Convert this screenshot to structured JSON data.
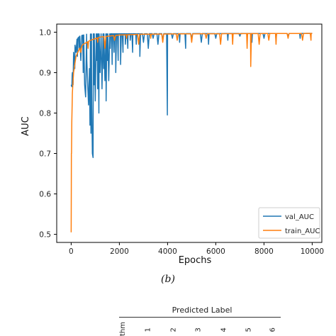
{
  "chart_data": {
    "type": "line",
    "xlabel": "Epochs",
    "ylabel": "AUC",
    "xlim": [
      -600,
      10400
    ],
    "ylim": [
      0.48,
      1.02
    ],
    "x_ticks": [
      "0",
      "2000",
      "4000",
      "6000",
      "8000",
      "10000"
    ],
    "y_ticks": [
      "0.5",
      "0.6",
      "0.7",
      "0.8",
      "0.9",
      "1.0"
    ],
    "legend_position": "lower-right",
    "grid": false,
    "series": [
      {
        "name": "val_AUC",
        "color": "#1f77b4",
        "baseline": [
          [
            0,
            0.87
          ],
          [
            50,
            0.9
          ],
          [
            100,
            0.95
          ],
          [
            200,
            0.98
          ],
          [
            350,
            0.99
          ],
          [
            600,
            0.995
          ],
          [
            1000,
            0.996
          ],
          [
            10000,
            0.997
          ]
        ],
        "dips": [
          [
            30,
            0.865
          ],
          [
            60,
            0.9
          ],
          [
            80,
            0.87
          ],
          [
            120,
            0.93
          ],
          [
            150,
            0.91
          ],
          [
            200,
            0.95
          ],
          [
            260,
            0.94
          ],
          [
            330,
            0.96
          ],
          [
            400,
            0.93
          ],
          [
            500,
            0.9
          ],
          [
            560,
            0.87
          ],
          [
            600,
            0.84
          ],
          [
            650,
            0.93
          ],
          [
            680,
            0.88
          ],
          [
            720,
            0.82
          ],
          [
            760,
            0.91
          ],
          [
            780,
            0.77
          ],
          [
            820,
            0.75
          ],
          [
            850,
            0.85
          ],
          [
            880,
            0.7
          ],
          [
            910,
            0.69
          ],
          [
            950,
            0.87
          ],
          [
            1000,
            0.83
          ],
          [
            1050,
            0.93
          ],
          [
            1100,
            0.86
          ],
          [
            1150,
            0.8
          ],
          [
            1200,
            0.9
          ],
          [
            1280,
            0.86
          ],
          [
            1350,
            0.91
          ],
          [
            1400,
            0.88
          ],
          [
            1450,
            0.83
          ],
          [
            1500,
            0.93
          ],
          [
            1560,
            0.88
          ],
          [
            1620,
            0.96
          ],
          [
            1700,
            0.92
          ],
          [
            1780,
            0.95
          ],
          [
            1850,
            0.9
          ],
          [
            1950,
            0.93
          ],
          [
            2050,
            0.92
          ],
          [
            2150,
            0.95
          ],
          [
            2250,
            0.97
          ],
          [
            2350,
            0.96
          ],
          [
            2450,
            0.98
          ],
          [
            2550,
            0.95
          ],
          [
            2700,
            0.97
          ],
          [
            2850,
            0.94
          ],
          [
            3000,
            0.975
          ],
          [
            3200,
            0.96
          ],
          [
            3400,
            0.985
          ],
          [
            3600,
            0.97
          ],
          [
            3800,
            0.98
          ],
          [
            3990,
            0.795
          ],
          [
            4200,
            0.985
          ],
          [
            4500,
            0.975
          ],
          [
            4750,
            0.96
          ],
          [
            5000,
            0.985
          ],
          [
            5400,
            0.975
          ],
          [
            5700,
            0.97
          ],
          [
            6000,
            0.985
          ],
          [
            6500,
            0.98
          ],
          [
            7000,
            0.99
          ],
          [
            7500,
            0.975
          ],
          [
            8000,
            0.985
          ],
          [
            8500,
            0.98
          ],
          [
            9000,
            0.99
          ],
          [
            9500,
            0.985
          ]
        ]
      },
      {
        "name": "train_AUC",
        "color": "#ff7f0e",
        "baseline": [
          [
            0,
            0.5
          ],
          [
            10,
            0.7
          ],
          [
            25,
            0.78
          ],
          [
            50,
            0.85
          ],
          [
            100,
            0.9
          ],
          [
            200,
            0.94
          ],
          [
            350,
            0.96
          ],
          [
            500,
            0.97
          ],
          [
            800,
            0.98
          ],
          [
            1200,
            0.988
          ],
          [
            2000,
            0.993
          ],
          [
            3000,
            0.995
          ],
          [
            5000,
            0.996
          ],
          [
            10000,
            0.997
          ]
        ],
        "dips": [
          [
            0,
            0.505
          ],
          [
            5,
            0.62
          ],
          [
            15,
            0.7
          ],
          [
            400,
            0.95
          ],
          [
            700,
            0.96
          ],
          [
            1100,
            0.975
          ],
          [
            1400,
            0.96
          ],
          [
            1800,
            0.98
          ],
          [
            2300,
            0.985
          ],
          [
            2800,
            0.97
          ],
          [
            3300,
            0.985
          ],
          [
            3800,
            0.975
          ],
          [
            4400,
            0.98
          ],
          [
            5000,
            0.975
          ],
          [
            5600,
            0.985
          ],
          [
            6200,
            0.97
          ],
          [
            6700,
            0.97
          ],
          [
            7300,
            0.96
          ],
          [
            7450,
            0.915
          ],
          [
            7800,
            0.97
          ],
          [
            8200,
            0.98
          ],
          [
            8500,
            0.97
          ],
          [
            9000,
            0.985
          ],
          [
            9600,
            0.98
          ],
          [
            9950,
            0.98
          ]
        ]
      }
    ]
  },
  "caption": "(b)",
  "confusion_matrix_header": {
    "title": "Predicted Label",
    "side_label": "thm",
    "column_numbers": [
      "1",
      "2",
      "3",
      "4",
      "5",
      "6"
    ]
  }
}
